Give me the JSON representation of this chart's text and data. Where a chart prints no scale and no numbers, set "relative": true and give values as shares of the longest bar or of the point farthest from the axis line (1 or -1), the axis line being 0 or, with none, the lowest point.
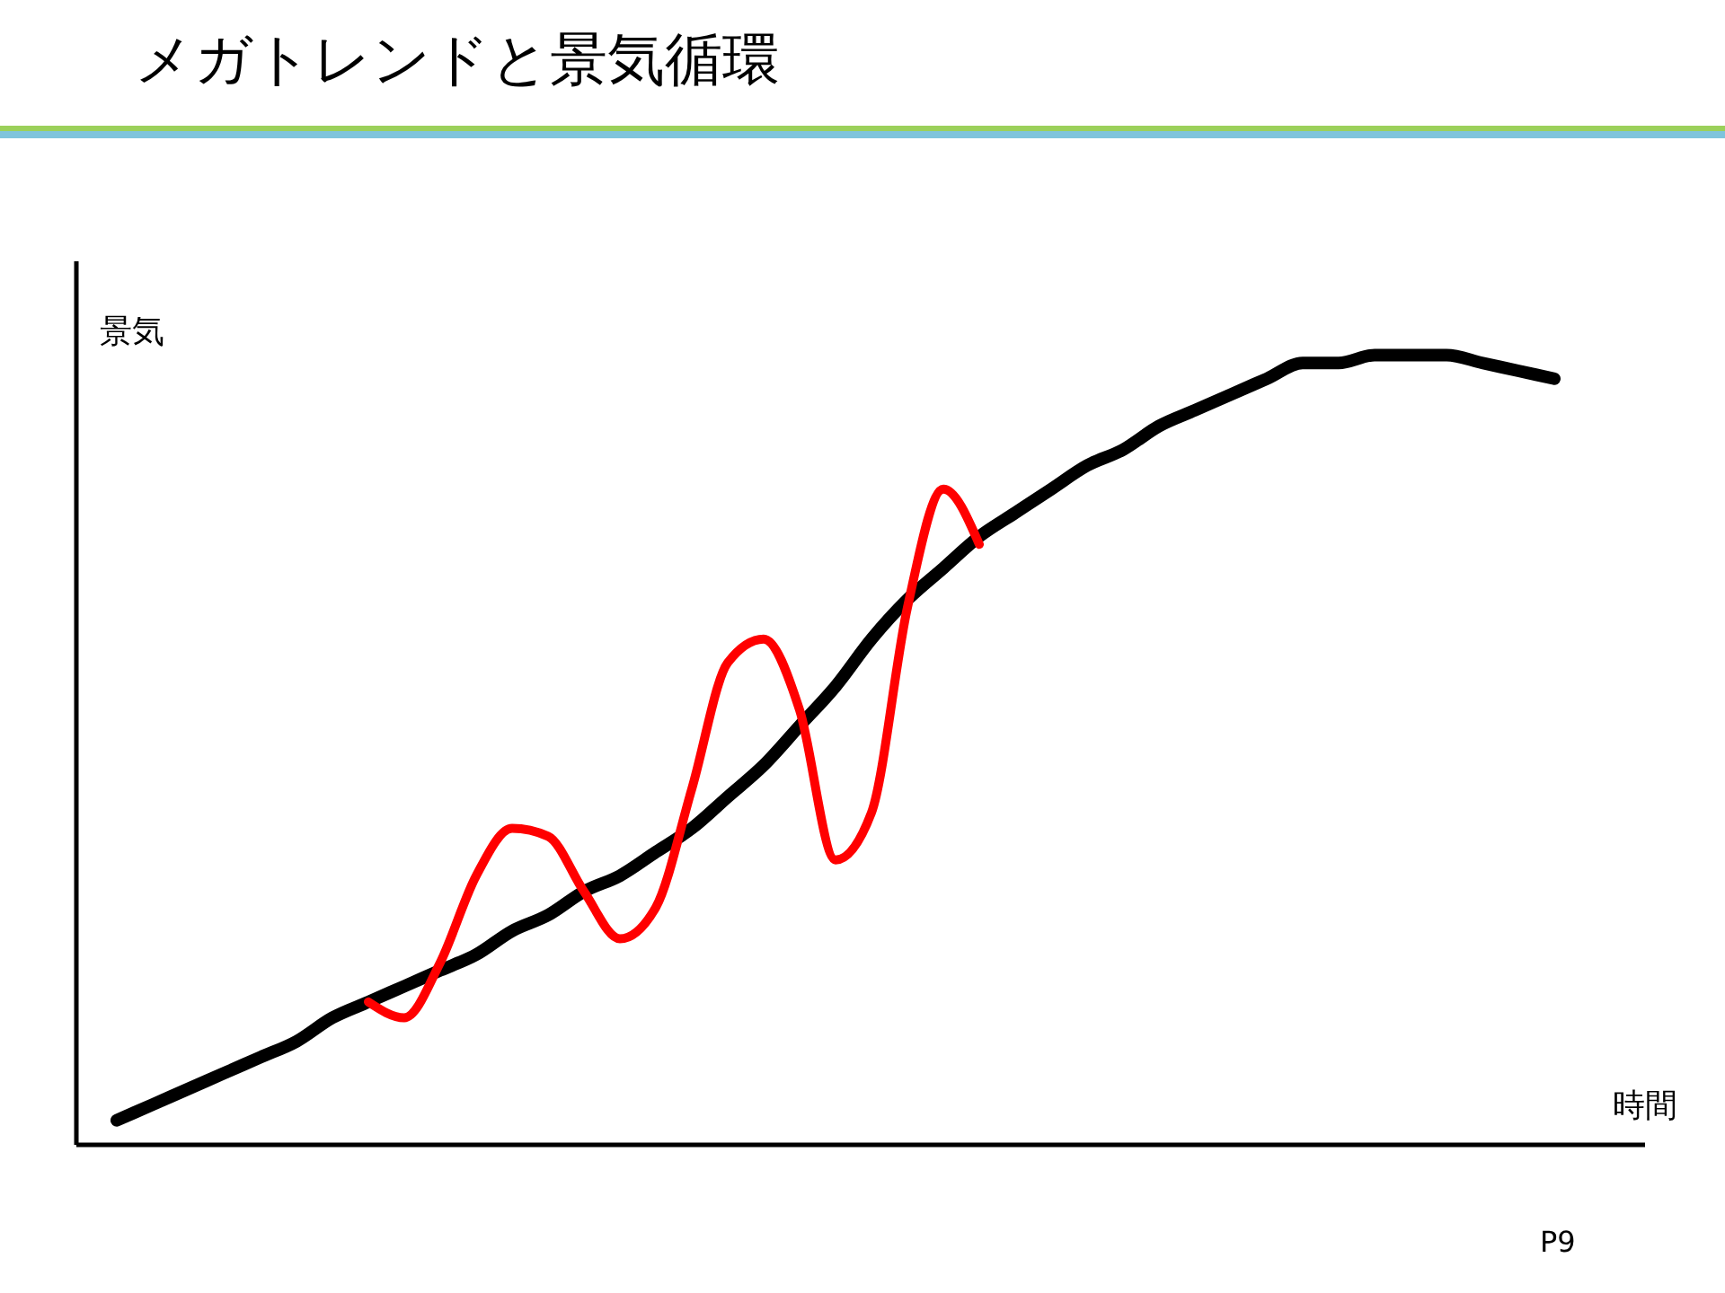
{
  "chart_data": {
    "type": "line",
    "title": "メガトレンドと景気循環",
    "xlabel": "時間",
    "ylabel": "景気",
    "relative": true,
    "annotations": [
      "P9"
    ],
    "categories": [
      null,
      null,
      null,
      null,
      null,
      null,
      null,
      null,
      null,
      null,
      null,
      null,
      null,
      null,
      null,
      null,
      null,
      null,
      null,
      null,
      null,
      null,
      null,
      null,
      null,
      null,
      null,
      null,
      null,
      null,
      null,
      null,
      null,
      null,
      null,
      null,
      null,
      null,
      null,
      null,
      null
    ],
    "series": [
      {
        "color": "#000000",
        "values": [
          0.03,
          0.05,
          0.07,
          0.09,
          0.11,
          0.13,
          0.16,
          0.18,
          0.2,
          0.22,
          0.24,
          0.27,
          0.29,
          0.32,
          0.34,
          0.37,
          0.4,
          0.44,
          0.48,
          0.53,
          0.58,
          0.64,
          0.69,
          0.73,
          0.77,
          0.8,
          0.83,
          0.86,
          0.88,
          0.91,
          0.93,
          0.95,
          0.97,
          0.99,
          0.99,
          1,
          1,
          1,
          0.99,
          0.98,
          0.97
        ]
      },
      {
        "color": "#ff0000",
        "values": [
          null,
          null,
          null,
          null,
          null,
          null,
          null,
          0.18,
          0.16,
          0.23,
          0.34,
          0.4,
          0.39,
          0.32,
          0.26,
          0.3,
          0.45,
          0.61,
          0.64,
          0.55,
          0.36,
          0.42,
          0.68,
          0.83,
          0.76,
          null,
          null,
          null,
          null,
          null,
          null,
          null,
          null,
          null,
          null,
          null,
          null,
          null,
          null,
          null,
          null
        ]
      }
    ]
  }
}
